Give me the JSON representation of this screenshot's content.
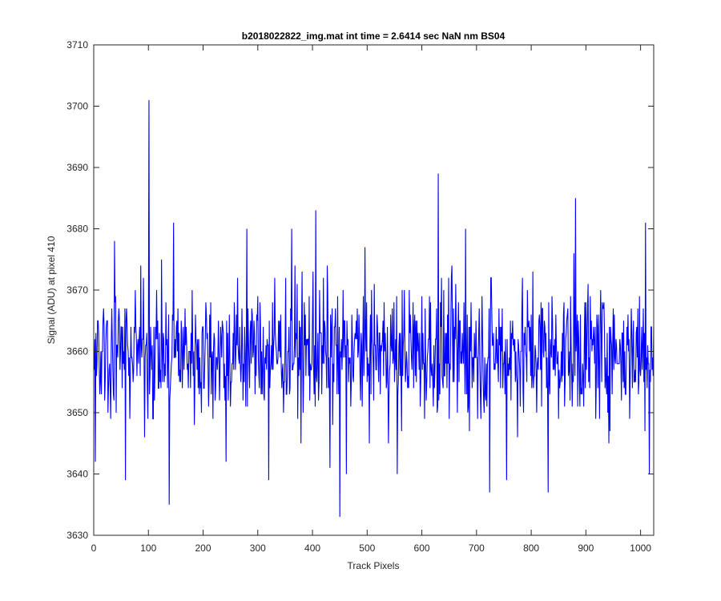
{
  "chart_data": {
    "type": "line",
    "title": "b2018022822_img.mat int time = 2.6414 sec  NaN nm BS04",
    "xlabel": "Track Pixels",
    "ylabel": "Signal (ADU) at pixel 410",
    "xlim": [
      0,
      1024
    ],
    "ylim": [
      3630,
      3710
    ],
    "xticks": [
      0,
      100,
      200,
      300,
      400,
      500,
      600,
      700,
      800,
      900,
      1000
    ],
    "yticks": [
      3630,
      3640,
      3650,
      3660,
      3670,
      3680,
      3690,
      3700,
      3710
    ],
    "grid": false,
    "line_color": "#0000ff",
    "series": [
      {
        "x_start": 1,
        "x_step": 1,
        "seed": 410,
        "mean": 3660,
        "spread": 5.5,
        "values_count": 1024,
        "peaks": [
          {
            "x": 3,
            "y": 3642
          },
          {
            "x": 38,
            "y": 3678
          },
          {
            "x": 58,
            "y": 3639
          },
          {
            "x": 101,
            "y": 3701
          },
          {
            "x": 138,
            "y": 3635
          },
          {
            "x": 146,
            "y": 3681
          },
          {
            "x": 242,
            "y": 3642
          },
          {
            "x": 280,
            "y": 3680
          },
          {
            "x": 320,
            "y": 3639
          },
          {
            "x": 362,
            "y": 3680
          },
          {
            "x": 406,
            "y": 3683
          },
          {
            "x": 432,
            "y": 3641
          },
          {
            "x": 450,
            "y": 3633
          },
          {
            "x": 462,
            "y": 3640
          },
          {
            "x": 555,
            "y": 3640
          },
          {
            "x": 630,
            "y": 3689
          },
          {
            "x": 680,
            "y": 3680
          },
          {
            "x": 724,
            "y": 3637
          },
          {
            "x": 755,
            "y": 3639
          },
          {
            "x": 831,
            "y": 3637
          },
          {
            "x": 881,
            "y": 3685
          },
          {
            "x": 1009,
            "y": 3681
          },
          {
            "x": 1016,
            "y": 3640
          }
        ]
      }
    ]
  }
}
